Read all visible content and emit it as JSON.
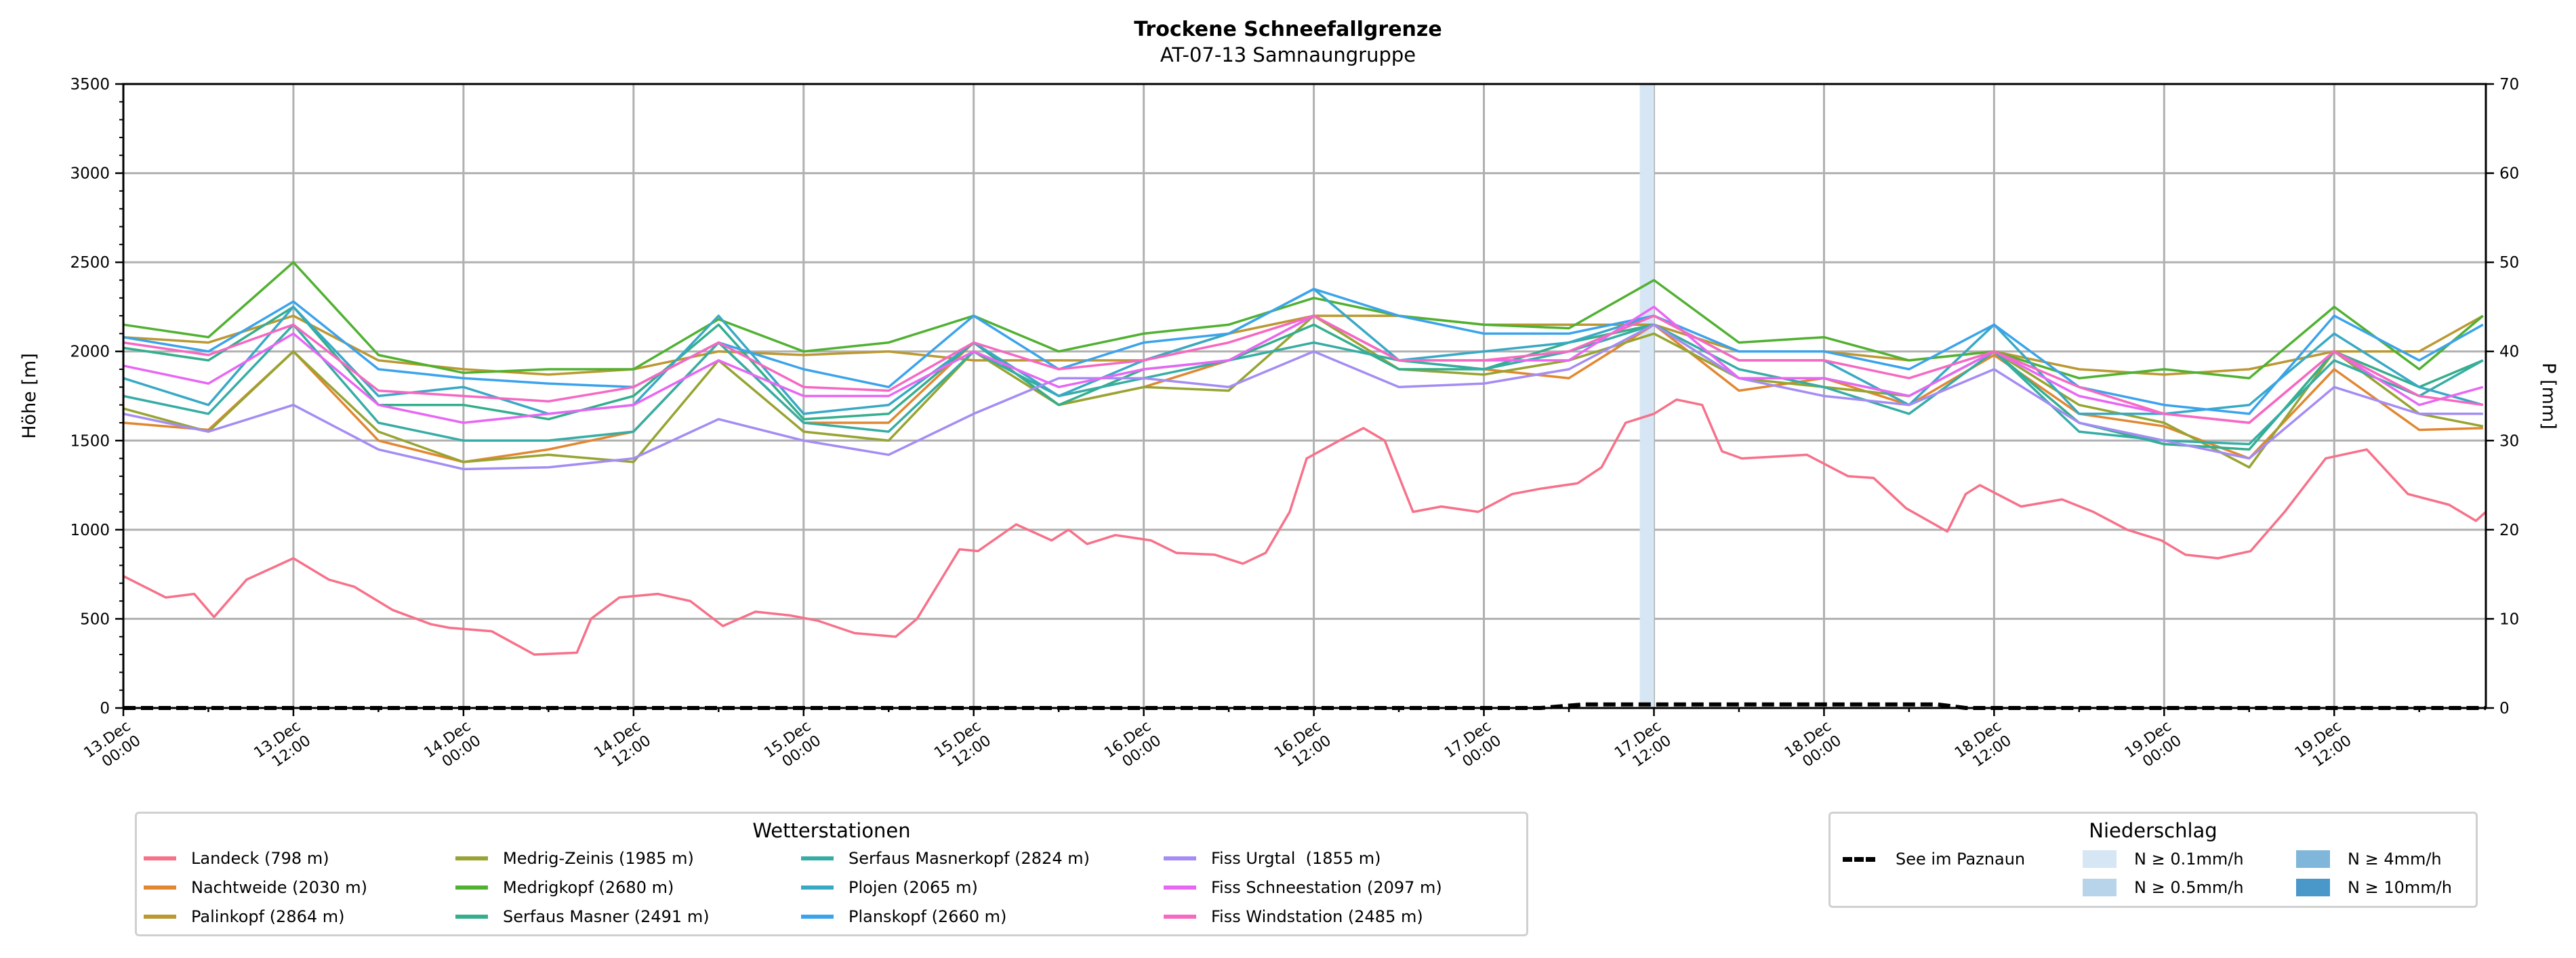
{
  "chart_data": {
    "type": "line",
    "title": "Trockene Schneefallgrenze",
    "subtitle": "AT-07-13 Samnaungruppe",
    "ylabel": "Höhe [m]",
    "ylabel_right": "P [mm]",
    "ylim": [
      0,
      3500
    ],
    "ylim_right": [
      0,
      70
    ],
    "yticks": [
      0,
      500,
      1000,
      1500,
      2000,
      2500,
      3000,
      3500
    ],
    "yticks_right": [
      0,
      10,
      20,
      30,
      40,
      50,
      60,
      70
    ],
    "x_unit": "hours since 13.Dec 00:00",
    "xlim": [
      0,
      166.7
    ],
    "xticks": [
      {
        "h": 0,
        "l1": "13.Dec",
        "l2": "00:00"
      },
      {
        "h": 12,
        "l1": "13.Dec",
        "l2": "12:00"
      },
      {
        "h": 24,
        "l1": "14.Dec",
        "l2": "00:00"
      },
      {
        "h": 36,
        "l1": "14.Dec",
        "l2": "12:00"
      },
      {
        "h": 48,
        "l1": "15.Dec",
        "l2": "00:00"
      },
      {
        "h": 60,
        "l1": "15.Dec",
        "l2": "12:00"
      },
      {
        "h": 72,
        "l1": "16.Dec",
        "l2": "00:00"
      },
      {
        "h": 84,
        "l1": "16.Dec",
        "l2": "12:00"
      },
      {
        "h": 96,
        "l1": "17.Dec",
        "l2": "00:00"
      },
      {
        "h": 108,
        "l1": "17.Dec",
        "l2": "12:00"
      },
      {
        "h": 120,
        "l1": "18.Dec",
        "l2": "00:00"
      },
      {
        "h": 132,
        "l1": "18.Dec",
        "l2": "12:00"
      },
      {
        "h": 144,
        "l1": "19.Dec",
        "l2": "00:00"
      },
      {
        "h": 156,
        "l1": "19.Dec",
        "l2": "12:00"
      }
    ],
    "grid": true,
    "x_common": [
      0,
      6,
      12,
      18,
      24,
      30,
      36,
      42,
      48,
      54,
      60,
      66,
      72,
      78,
      84,
      90,
      96,
      102,
      108,
      114,
      120,
      126,
      132,
      138,
      144,
      150,
      156,
      162,
      166.5
    ],
    "series": [
      {
        "name": "Landeck (798 m)",
        "color": "#f77189",
        "x": [
          0,
          3,
          5,
          6.4,
          8.7,
          12,
          14.5,
          16.3,
          19,
          21.7,
          23,
          26,
          29,
          32,
          33,
          35,
          37.7,
          40,
          42.3,
          44.6,
          47,
          49,
          51.6,
          54.5,
          56,
          58,
          59,
          60.3,
          63,
          65.5,
          66.7,
          68,
          70,
          72.5,
          74.3,
          77,
          79,
          80.6,
          82.3,
          83.5,
          85.8,
          87.5,
          89,
          90.4,
          91,
          93,
          95.6,
          98,
          100,
          102.6,
          104.3,
          106,
          108,
          109.6,
          111.4,
          112.8,
          114.2,
          116.5,
          118.8,
          121.7,
          123.5,
          125.8,
          128.7,
          130,
          131,
          133.9,
          136.8,
          139,
          141.4,
          143.8,
          145.5,
          147.8,
          150.1,
          152.5,
          155.4,
          158.3,
          161.2,
          164.1,
          166,
          166.7
        ],
        "y": [
          740,
          620,
          640,
          510,
          720,
          840,
          720,
          680,
          550,
          470,
          450,
          430,
          300,
          310,
          500,
          620,
          640,
          600,
          460,
          540,
          520,
          490,
          420,
          400,
          500,
          760,
          890,
          880,
          1030,
          940,
          1000,
          920,
          970,
          940,
          870,
          860,
          810,
          870,
          1100,
          1400,
          1500,
          1570,
          1500,
          1220,
          1100,
          1130,
          1100,
          1200,
          1230,
          1260,
          1350,
          1600,
          1650,
          1730,
          1700,
          1440,
          1400,
          1410,
          1420,
          1300,
          1290,
          1120,
          990,
          1200,
          1250,
          1130,
          1170,
          1100,
          1000,
          940,
          860,
          840,
          880,
          1100,
          1400,
          1450,
          1200,
          1140,
          1050,
          1100
        ]
      },
      {
        "name": "Nachtweide (2030 m)",
        "color": "#e18732",
        "y": [
          1600,
          1560,
          2000,
          1500,
          1380,
          1450,
          1550,
          2050,
          1600,
          1600,
          2050,
          1700,
          1800,
          1950,
          2200,
          1950,
          1900,
          1850,
          2150,
          1780,
          1850,
          1700,
          1980,
          1650,
          1580,
          1400,
          1900,
          1560,
          1570
        ]
      },
      {
        "name": "Palinkopf (2864 m)",
        "color": "#bb9832",
        "y": [
          2080,
          2050,
          2200,
          1950,
          1900,
          1870,
          1900,
          2000,
          1980,
          2000,
          1950,
          1950,
          1950,
          2100,
          2200,
          2200,
          2150,
          2150,
          2150,
          2000,
          2000,
          1950,
          2000,
          1900,
          1870,
          1900,
          2000,
          2000,
          2200
        ]
      },
      {
        "name": "Medrig-Zeinis (1985 m)",
        "color": "#97a431",
        "y": [
          1680,
          1550,
          2000,
          1550,
          1380,
          1420,
          1380,
          1950,
          1550,
          1500,
          2000,
          1700,
          1800,
          1780,
          2200,
          1900,
          1870,
          1950,
          2100,
          1850,
          1800,
          1750,
          2000,
          1700,
          1600,
          1350,
          2000,
          1650,
          1580
        ]
      },
      {
        "name": "Medrigkopf (2680 m)",
        "color": "#50b131",
        "y": [
          2150,
          2080,
          2500,
          1980,
          1880,
          1900,
          1900,
          2180,
          2000,
          2050,
          2200,
          2000,
          2100,
          2150,
          2300,
          2200,
          2150,
          2130,
          2400,
          2050,
          2080,
          1950,
          2000,
          1850,
          1900,
          1850,
          2250,
          1900,
          2200
        ]
      },
      {
        "name": "Serfaus Masner (2491 m)",
        "color": "#34ae8d",
        "y": [
          2020,
          1950,
          2250,
          1700,
          1700,
          1620,
          1750,
          2150,
          1620,
          1650,
          2050,
          1700,
          1900,
          1950,
          2150,
          1900,
          1900,
          2050,
          2150,
          1850,
          1850,
          1750,
          2000,
          1600,
          1480,
          1450,
          2000,
          1800,
          1950
        ]
      },
      {
        "name": "Serfaus Masnerkopf (2824 m)",
        "color": "#36ada4",
        "y": [
          1750,
          1650,
          2150,
          1600,
          1500,
          1500,
          1550,
          2050,
          1600,
          1550,
          2000,
          1750,
          1850,
          1950,
          2050,
          1950,
          1900,
          2000,
          2150,
          1900,
          1800,
          1650,
          2000,
          1550,
          1500,
          1480,
          1950,
          1750,
          1950
        ]
      },
      {
        "name": "Plojen (2065 m)",
        "color": "#38a9c5",
        "y": [
          1850,
          1700,
          2250,
          1750,
          1800,
          1650,
          1700,
          2200,
          1650,
          1700,
          2050,
          1750,
          1950,
          2100,
          2350,
          1950,
          2000,
          2050,
          2200,
          1950,
          1950,
          1700,
          2150,
          1650,
          1650,
          1700,
          2100,
          1800,
          1700
        ]
      },
      {
        "name": "Planskopf (2660 m)",
        "color": "#3ba3ec",
        "y": [
          2080,
          2000,
          2280,
          1900,
          1850,
          1820,
          1800,
          2050,
          1900,
          1800,
          2200,
          1900,
          2050,
          2100,
          2350,
          2200,
          2100,
          2100,
          2200,
          2000,
          2000,
          1900,
          2150,
          1800,
          1700,
          1650,
          2200,
          1950,
          2150
        ]
      },
      {
        "name": "Fiss Urgtal  (1855 m)",
        "color": "#a48cf4",
        "y": [
          1650,
          1550,
          1700,
          1450,
          1340,
          1350,
          1400,
          1620,
          1500,
          1420,
          1650,
          1850,
          1850,
          1800,
          2000,
          1800,
          1820,
          1900,
          2150,
          1850,
          1750,
          1700,
          1900,
          1600,
          1500,
          1400,
          1800,
          1650,
          1650
        ]
      },
      {
        "name": "Fiss Schneestation (2097 m)",
        "color": "#e866f4",
        "y": [
          1920,
          1820,
          2100,
          1700,
          1600,
          1650,
          1700,
          1950,
          1750,
          1750,
          2000,
          1800,
          1900,
          1950,
          2200,
          1950,
          1950,
          1950,
          2250,
          1850,
          1850,
          1750,
          2000,
          1750,
          1650,
          1600,
          2000,
          1700,
          1800
        ]
      },
      {
        "name": "Fiss Windstation (2485 m)",
        "color": "#f668c2",
        "y": [
          2050,
          1980,
          2150,
          1780,
          1750,
          1720,
          1800,
          2050,
          1800,
          1780,
          2050,
          1900,
          1950,
          2050,
          2200,
          1950,
          1950,
          2000,
          2200,
          1950,
          1950,
          1850,
          2000,
          1800,
          1650,
          1600,
          2000,
          1750,
          1700
        ]
      }
    ],
    "precip_series": {
      "name": "See im Paznaun",
      "color": "#000000",
      "x": [
        0,
        100,
        103,
        128,
        130,
        166.7
      ],
      "y": [
        0,
        0,
        0.4,
        0.4,
        0,
        0
      ]
    },
    "precip_spans": [
      {
        "from_h": 107,
        "to_h": 108,
        "class": "N ≥ 0.1mm/h",
        "color": "#d6e6f4"
      }
    ],
    "legend_stations": {
      "title": "Wetterstationen",
      "placement": "bottom-left",
      "ncol": 4
    },
    "legend_precip": {
      "title": "Niederschlag",
      "placement": "bottom-right",
      "line_label": "See im Paznaun",
      "classes": [
        {
          "label": "N ≥ 0.1mm/h",
          "color": "#d6e6f4"
        },
        {
          "label": "N ≥ 0.5mm/h",
          "color": "#b8d4ea"
        },
        {
          "label": "N ≥ 4mm/h",
          "color": "#80b6d9"
        },
        {
          "label": "N ≥ 10mm/h",
          "color": "#4a97c9"
        }
      ]
    }
  }
}
